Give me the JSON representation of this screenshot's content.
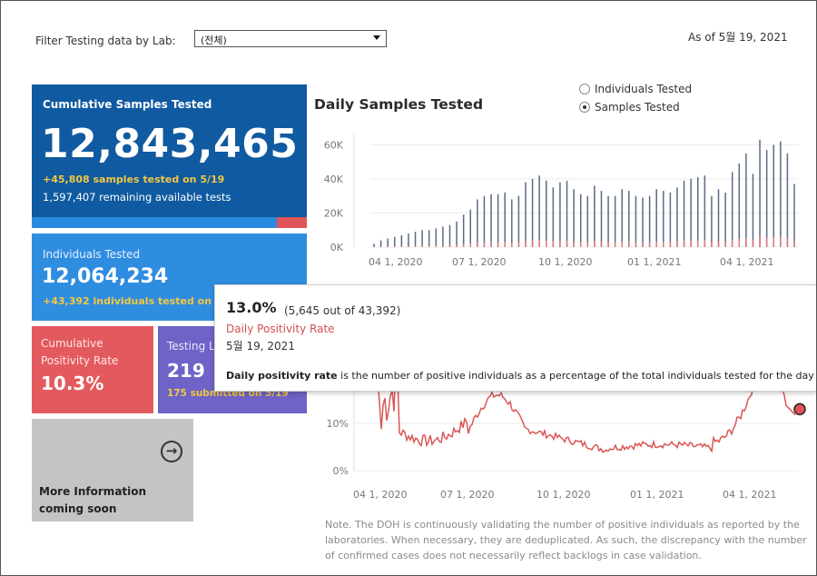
{
  "filter": {
    "label": "Filter Testing data by Lab:",
    "value": "(전체)"
  },
  "as_of": "As of 5월 19, 2021",
  "kpis": {
    "cumulative": {
      "title": "Cumulative Samples Tested",
      "value": "12,843,465",
      "sub1": "+45,808 samples tested on 5/19",
      "sub2": "1,597,407 remaining available tests",
      "colors": {
        "bg": "#0f5aa0",
        "bar": "#2a8ae0",
        "accent": "#e0555a"
      }
    },
    "individuals": {
      "title": "Individuals Tested",
      "value": "12,064,234",
      "sub1": "+43,392  individuals  tested on 5/19"
    },
    "positivity": {
      "title_line1": "Cumulative",
      "title_line2": "Positivity Rate",
      "value": "10.3%"
    },
    "labs": {
      "title": "Testing Labs",
      "value": "219",
      "sub1": "175 submitted on 5/19"
    },
    "more": {
      "line1": "More Information",
      "line2": "coming soon",
      "icon": "arrow-right-circle-icon"
    }
  },
  "daily_chart": {
    "title": "Daily Samples Tested",
    "radio_options": [
      "Individuals Tested",
      "Samples Tested"
    ],
    "selected_option": "Samples Tested"
  },
  "tooltip": {
    "percent": "13.0%",
    "detail": "(5,645 out of  43,392)",
    "measure": "Daily Positivity Rate",
    "date": "5월 19, 2021",
    "desc_bold": "Daily positivity rate",
    "desc_rest": " is the number of positive individuals as a percentage of the total individuals tested for the day"
  },
  "note": "Note. The DOH is continuously validating the number of positive individuals as reported by the laboratories. When necessary, they are deduplicated. As such, the discrepancy with the number of confirmed cases does not necessarily reflect backlogs in case validation.",
  "chart_data": [
    {
      "type": "bar",
      "title": "Daily Samples Tested",
      "ylabel": "",
      "xlabel": "",
      "ylim": [
        0,
        65000
      ],
      "yticks": [
        "0K",
        "20K",
        "40K",
        "60K"
      ],
      "ytick_values": [
        0,
        20000,
        40000,
        60000
      ],
      "xticks": [
        "04 1, 2020",
        "07 1, 2020",
        "10 1, 2020",
        "01 1, 2021",
        "04 1, 2021"
      ],
      "colors": {
        "bars": "#5b6b82",
        "positives": "#e07a7a"
      },
      "series": [
        {
          "values": [
            2000,
            4000,
            5000,
            6000,
            7000,
            8000,
            9000,
            10000,
            10000,
            11000,
            12000,
            13000,
            15000,
            19000,
            22000,
            28000,
            30000,
            31000,
            31000,
            32000,
            28000,
            30000,
            38000,
            40000,
            42000,
            39000,
            35000,
            38000,
            39000,
            34000,
            31000,
            30000,
            36000,
            33000,
            30000,
            30000,
            34000,
            33000,
            30000,
            29000,
            30000,
            34000,
            33000,
            32000,
            35000,
            39000,
            40000,
            41000,
            42000,
            30000,
            34000,
            32000,
            44000,
            49000,
            55000,
            43000,
            63000,
            57000,
            60000,
            62000,
            55000,
            37000
          ]
        }
      ]
    },
    {
      "type": "line",
      "title": "",
      "ylabel": "",
      "xlabel": "",
      "yticks": [
        "0%",
        "10%"
      ],
      "ytick_values": [
        0,
        10
      ],
      "xticks": [
        "04 1, 2020",
        "07 1, 2020",
        "10 1, 2020",
        "01 1, 2021",
        "04 1, 2021"
      ],
      "last_point_value": 13.0,
      "colors": {
        "line": "#d95757",
        "marker": "#e0505a"
      }
    }
  ]
}
